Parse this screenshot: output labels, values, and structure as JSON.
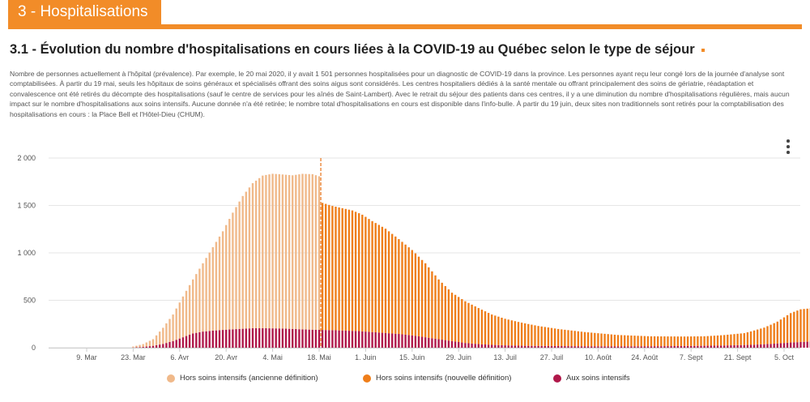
{
  "section": {
    "label": "3 - Hospitalisations"
  },
  "title": {
    "text": "3.1 - Évolution du nombre d'hospitalisations en cours liées à la COVID-19 au Québec selon le type de séjour"
  },
  "description": {
    "text": "Nombre de personnes actuellement à l'hôpital (prévalence). Par exemple, le 20 mai 2020, il y avait 1 501 personnes hospitalisées pour un diagnostic de COVID-19 dans la province. Les personnes ayant reçu leur congé lors de la journée d'analyse sont comptabilisées. À partir du 19 mai, seuls les hôpitaux de soins généraux et spécialisés offrant des soins aigus sont considérés. Les centres hospitaliers dédiés à la santé mentale ou offrant principalement des soins de gériatrie, réadaptation et convalescence ont été retirés du décompte des hospitalisations (sauf le centre de services pour les aînés de Saint-Lambert). Avec le retrait du séjour des patients dans ces centres, il y a une diminution du nombre d'hospitalisations régulières, mais aucun impact sur le nombre d'hospitalisations aux soins intensifs. Aucune donnée n'a été retirée; le nombre total d'hospitalisations en cours est disponible dans l'info-bulle. À partir du 19 juin, deux sites non traditionnels sont retirés pour la comptabilisation des hospitalisations en cours : la Place Bell et l'Hôtel-Dieu (CHUM)."
  },
  "colors": {
    "accent": "#f28c28",
    "old_def": "#f0b98a",
    "new_def": "#ef7e1a",
    "icu": "#b0184a",
    "divider": "#e8741a"
  },
  "chart_data": {
    "type": "bar",
    "stacked": true,
    "x_unit": "day",
    "x_start_day": 0,
    "x_end_day": 218,
    "x_note": "day 0 = 9 March 2020; one bar per day",
    "ylim": [
      0,
      2000
    ],
    "yticks": [
      {
        "value": 0,
        "label": "0"
      },
      {
        "value": 500,
        "label": "500"
      },
      {
        "value": 1000,
        "label": "1 000"
      },
      {
        "value": 1500,
        "label": "1 500"
      },
      {
        "value": 2000,
        "label": "2 000"
      }
    ],
    "xticks": [
      {
        "day": 0,
        "label": "9. Mar"
      },
      {
        "day": 14,
        "label": "23. Mar"
      },
      {
        "day": 28,
        "label": "6. Avr"
      },
      {
        "day": 42,
        "label": "20. Avr"
      },
      {
        "day": 56,
        "label": "4. Mai"
      },
      {
        "day": 70,
        "label": "18. Mai"
      },
      {
        "day": 84,
        "label": "1. Juin"
      },
      {
        "day": 98,
        "label": "15. Juin"
      },
      {
        "day": 112,
        "label": "29. Juin"
      },
      {
        "day": 126,
        "label": "13. Juil"
      },
      {
        "day": 140,
        "label": "27. Juil"
      },
      {
        "day": 154,
        "label": "10. Août"
      },
      {
        "day": 168,
        "label": "24. Août"
      },
      {
        "day": 182,
        "label": "7. Sept"
      },
      {
        "day": 196,
        "label": "21. Sept"
      },
      {
        "day": 210,
        "label": "5. Oct"
      }
    ],
    "definition_change_day": 71,
    "series": [
      {
        "name": "Hors soins intensifs (ancienne définition)",
        "color": "#f0b98a",
        "points": [
          [
            14,
            10
          ],
          [
            17,
            30
          ],
          [
            20,
            70
          ],
          [
            23,
            170
          ],
          [
            26,
            280
          ],
          [
            29,
            430
          ],
          [
            32,
            570
          ],
          [
            35,
            720
          ],
          [
            38,
            880
          ],
          [
            41,
            1040
          ],
          [
            44,
            1230
          ],
          [
            47,
            1400
          ],
          [
            50,
            1530
          ],
          [
            53,
            1610
          ],
          [
            56,
            1630
          ],
          [
            59,
            1625
          ],
          [
            62,
            1620
          ],
          [
            65,
            1640
          ],
          [
            68,
            1640
          ],
          [
            70,
            1620
          ]
        ]
      },
      {
        "name": "Hors soins intensifs (nouvelle définition)",
        "color": "#ef7e1a",
        "points": [
          [
            71,
            1340
          ],
          [
            74,
            1310
          ],
          [
            77,
            1290
          ],
          [
            80,
            1270
          ],
          [
            83,
            1230
          ],
          [
            86,
            1170
          ],
          [
            90,
            1100
          ],
          [
            94,
            1000
          ],
          [
            98,
            900
          ],
          [
            102,
            780
          ],
          [
            106,
            630
          ],
          [
            110,
            510
          ],
          [
            114,
            440
          ],
          [
            118,
            380
          ],
          [
            122,
            320
          ],
          [
            126,
            280
          ],
          [
            130,
            250
          ],
          [
            136,
            210
          ],
          [
            142,
            180
          ],
          [
            150,
            150
          ],
          [
            160,
            120
          ],
          [
            170,
            105
          ],
          [
            180,
            100
          ],
          [
            186,
            100
          ],
          [
            192,
            110
          ],
          [
            198,
            125
          ],
          [
            204,
            175
          ],
          [
            208,
            230
          ],
          [
            212,
            310
          ],
          [
            215,
            345
          ],
          [
            218,
            350
          ]
        ]
      },
      {
        "name": "Aux soins intensifs",
        "color": "#b0184a",
        "points": [
          [
            14,
            2
          ],
          [
            17,
            8
          ],
          [
            20,
            20
          ],
          [
            23,
            40
          ],
          [
            26,
            70
          ],
          [
            29,
            110
          ],
          [
            32,
            150
          ],
          [
            35,
            170
          ],
          [
            38,
            180
          ],
          [
            42,
            190
          ],
          [
            46,
            198
          ],
          [
            50,
            205
          ],
          [
            54,
            205
          ],
          [
            58,
            203
          ],
          [
            62,
            198
          ],
          [
            66,
            192
          ],
          [
            70,
            188
          ],
          [
            74,
            185
          ],
          [
            78,
            180
          ],
          [
            82,
            175
          ],
          [
            86,
            165
          ],
          [
            90,
            155
          ],
          [
            94,
            145
          ],
          [
            98,
            130
          ],
          [
            102,
            110
          ],
          [
            106,
            90
          ],
          [
            110,
            70
          ],
          [
            114,
            50
          ],
          [
            118,
            38
          ],
          [
            122,
            30
          ],
          [
            126,
            25
          ],
          [
            132,
            20
          ],
          [
            140,
            18
          ],
          [
            150,
            15
          ],
          [
            160,
            14
          ],
          [
            170,
            15
          ],
          [
            180,
            18
          ],
          [
            190,
            22
          ],
          [
            200,
            30
          ],
          [
            206,
            40
          ],
          [
            212,
            55
          ],
          [
            218,
            65
          ]
        ]
      }
    ]
  }
}
